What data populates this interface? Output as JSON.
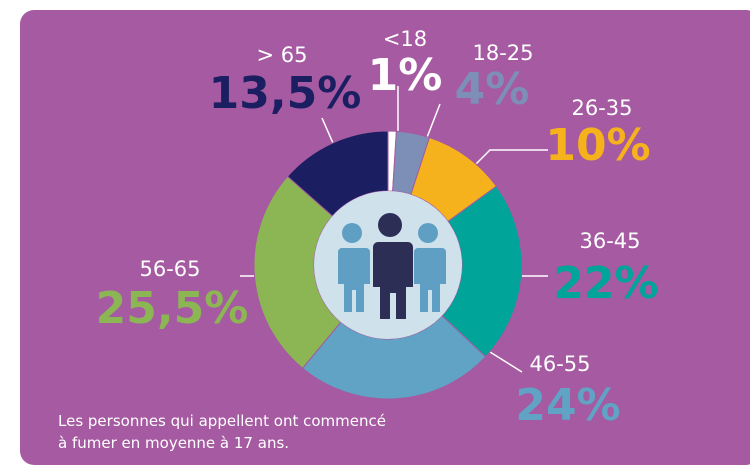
{
  "chart_data": {
    "type": "donut",
    "categories": [
      "<18",
      "18-25",
      "26-35",
      "36-45",
      "46-55",
      "56-65",
      "> 65"
    ],
    "values": [
      1,
      4,
      10,
      22,
      24,
      25.5,
      13.5
    ],
    "value_labels": [
      "1%",
      "4%",
      "10%",
      "22%",
      "24%",
      "25,5%",
      "13,5%"
    ],
    "colors": [
      "#ffffff",
      "#7d8fb6",
      "#f6b21c",
      "#00a498",
      "#60a3c4",
      "#8cb654",
      "#1b1e60"
    ],
    "note_lines": [
      "Les personnes qui appellent ont commencé",
      "à fumer en moyenne à 17 ans."
    ]
  }
}
